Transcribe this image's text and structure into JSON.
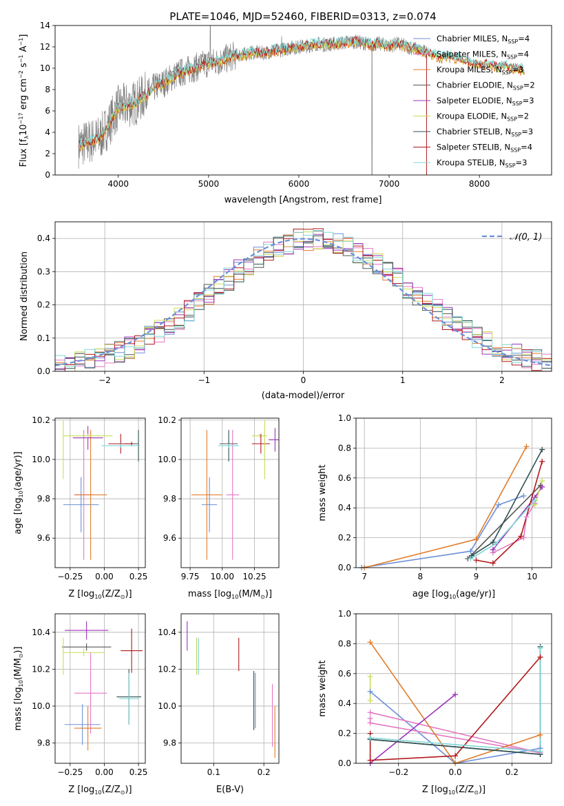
{
  "page": {
    "title": "PLATE=1046, MJD=52460, FIBERID=0313, z=0.074"
  },
  "colors": {
    "chabrier_miles": "#6a8fd8",
    "salpeter_miles": "#e377c2",
    "kroupa_miles": "#e07b2a",
    "chabrier_elodie": "#555555",
    "salpeter_elodie": "#9b30b8",
    "kroupa_elodie": "#c8dd55",
    "chabrier_stelib": "#2f4f4f",
    "salpeter_stelib": "#b0181c",
    "kroupa_stelib": "#7fd6d6",
    "data_spectrum": "#808080",
    "normal_curve": "#6a8fd8"
  },
  "chart_data": [
    {
      "id": "spectrum",
      "type": "line",
      "title": "PLATE=1046, MJD=52460, FIBERID=0313, z=0.074",
      "xlabel": "wavelength [Angstrom, rest frame]",
      "ylabel_parts": [
        "Flux [f",
        "λ",
        "10",
        "−17",
        " erg cm",
        "−2",
        " s",
        "−1",
        " A",
        "−1",
        "]"
      ],
      "xlim": [
        3300,
        8800
      ],
      "ylim": [
        0,
        14
      ],
      "xticks": [
        "4000",
        "5000",
        "6000",
        "7000",
        "8000"
      ],
      "yticks": [
        "0",
        "2",
        "4",
        "6",
        "8",
        "10",
        "12",
        "14"
      ],
      "spectrum_anchor": {
        "x": [
          3560,
          3700,
          3800,
          3900,
          3950,
          4000,
          4100,
          4200,
          4300,
          4400,
          4500,
          4600,
          4700,
          4800,
          4900,
          5000,
          5100,
          5200,
          5300,
          5400,
          5500,
          5600,
          5700,
          5800,
          5900,
          6000,
          6100,
          6200,
          6300,
          6400,
          6500,
          6600,
          6700,
          6800,
          6900,
          7000,
          7100,
          7200,
          7300,
          7400,
          7500,
          7600,
          7700,
          7800,
          7900,
          8000,
          8100,
          8200,
          8300,
          8400,
          8500
        ],
        "y": [
          2.8,
          3.2,
          3.5,
          4.8,
          5.6,
          6.3,
          6.5,
          6.8,
          7.5,
          8.2,
          8.6,
          9.2,
          9.6,
          9.9,
          10.2,
          10.5,
          10.6,
          10.9,
          11.2,
          11.3,
          11.5,
          11.4,
          11.6,
          11.7,
          11.9,
          12.0,
          12.1,
          12.3,
          12.2,
          12.3,
          12.4,
          12.5,
          12.4,
          12.2,
          12.3,
          12.1,
          12.3,
          12.0,
          11.8,
          11.5,
          11.2,
          11.0,
          11.1,
          10.9,
          10.6,
          10.3,
          10.4,
          10.1,
          10.2,
          10.0,
          9.8
        ]
      },
      "series": [
        {
          "name": "Chabrier MILES, N",
          "sub": "SSP",
          "suffix": "=4",
          "color_key": "chabrier_miles"
        },
        {
          "name": "Salpeter MILES, N",
          "sub": "SSP",
          "suffix": "=4",
          "color_key": "salpeter_miles"
        },
        {
          "name": "Kroupa MILES, N",
          "sub": "SSP",
          "suffix": "=3",
          "color_key": "kroupa_miles"
        },
        {
          "name": "Chabrier ELODIE, N",
          "sub": "SSP",
          "suffix": "=2",
          "color_key": "chabrier_elodie"
        },
        {
          "name": "Salpeter ELODIE, N",
          "sub": "SSP",
          "suffix": "=3",
          "color_key": "salpeter_elodie"
        },
        {
          "name": "Kroupa ELODIE, N",
          "sub": "SSP",
          "suffix": "=2",
          "color_key": "kroupa_elodie"
        },
        {
          "name": "Chabrier STELIB, N",
          "sub": "SSP",
          "suffix": "=3",
          "color_key": "chabrier_stelib"
        },
        {
          "name": "Salpeter STELIB, N",
          "sub": "SSP",
          "suffix": "=4",
          "color_key": "salpeter_stelib"
        },
        {
          "name": "Kroupa STELIB, N",
          "sub": "SSP",
          "suffix": "=3",
          "color_key": "kroupa_stelib"
        }
      ],
      "legend": "upper right",
      "grid": false
    },
    {
      "id": "residuals",
      "type": "histogram",
      "xlabel": "(data-model)/error",
      "ylabel": "Normed distribution",
      "xlim": [
        -2.5,
        2.5
      ],
      "ylim": [
        0,
        0.45
      ],
      "xticks": [
        {
          "v": -2,
          "t": "−2"
        },
        {
          "v": -1,
          "t": "−1"
        },
        {
          "v": 0,
          "t": "0"
        },
        {
          "v": 1,
          "t": "1"
        },
        {
          "v": 2,
          "t": "2"
        }
      ],
      "yticks": [
        "0.0",
        "0.1",
        "0.2",
        "0.3",
        "0.4"
      ],
      "bin_width": 0.1,
      "reference_curve": {
        "name": "𝒩(0, 1)",
        "mu": 0,
        "sigma": 1
      },
      "legend": "upper right",
      "grid": true
    },
    {
      "id": "age_vs_Z",
      "type": "scatter_errorbar",
      "xlabel": "Z [log",
      "xlabel_tail": "(Z/Z",
      "xlabel_end": ")]",
      "ylabel": "age  [log",
      "ylabel_tail": "(age/yr)]",
      "xlim": [
        -0.36,
        0.3
      ],
      "ylim": [
        9.45,
        10.21
      ],
      "xticks": [
        {
          "v": -0.25,
          "t": "−0.25"
        },
        {
          "v": 0,
          "t": "0.00"
        },
        {
          "v": 0.25,
          "t": "0.25"
        }
      ],
      "yticks": [
        {
          "v": 9.6,
          "t": "9.6"
        },
        {
          "v": 9.8,
          "t": "9.8"
        },
        {
          "v": 10.0,
          "t": "10.0"
        },
        {
          "v": 10.2,
          "t": "10.2"
        }
      ],
      "points": [
        {
          "c": "chabrier_miles",
          "x": -0.17,
          "xe": 0.13,
          "y": 9.77,
          "ye": 0.14
        },
        {
          "c": "salpeter_miles",
          "x": -0.15,
          "xe": 0.07,
          "y": 9.82,
          "ye": 0.33
        },
        {
          "c": "kroupa_miles",
          "x": -0.1,
          "xe": 0.12,
          "y": 9.82,
          "ye": 0.33
        },
        {
          "c": "chabrier_elodie",
          "x": 0.2,
          "xe": 0.05,
          "y": 10.08,
          "ye": 0.01
        },
        {
          "c": "salpeter_elodie",
          "x": -0.12,
          "xe": 0.11,
          "y": 10.11,
          "ye": 0.06
        },
        {
          "c": "kroupa_elodie",
          "x": -0.12,
          "xe": 0.18,
          "y": 10.12,
          "ye": 0.01
        },
        {
          "c": "chabrier_stelib",
          "x": 0.25,
          "xe": 0.01,
          "y": 10.07,
          "ye": 0.08
        },
        {
          "c": "salpeter_stelib",
          "x": 0.12,
          "xe": 0.09,
          "y": 10.08,
          "ye": 0.05
        },
        {
          "c": "kroupa_stelib",
          "x": 0.12,
          "xe": 0.14,
          "y": 10.07,
          "ye": 0.01
        },
        {
          "c": "kroupa_elodie",
          "x": -0.3,
          "xe": 0.0,
          "y": 10.05,
          "ye": 0.15
        }
      ],
      "grid": true
    },
    {
      "id": "age_vs_mass",
      "type": "scatter_errorbar",
      "xlabel": "mass [log",
      "xlabel_tail": "(M/M",
      "xlabel_end": ")]",
      "xlim": [
        9.68,
        10.44
      ],
      "ylim": [
        9.45,
        10.21
      ],
      "xticks": [
        {
          "v": 9.75,
          "t": "9.75"
        },
        {
          "v": 10.0,
          "t": "10.00"
        },
        {
          "v": 10.25,
          "t": "10.25"
        }
      ],
      "yticks": [
        {
          "v": 9.6,
          "t": "9.6"
        },
        {
          "v": 9.8,
          "t": "9.8"
        },
        {
          "v": 10.0,
          "t": "10.0"
        },
        {
          "v": 10.2,
          "t": "10.2"
        }
      ],
      "points": [
        {
          "c": "chabrier_miles",
          "x": 9.9,
          "xe": 0.06,
          "y": 9.77,
          "ye": 0.14
        },
        {
          "c": "salpeter_miles",
          "x": 10.08,
          "xe": 0.05,
          "y": 9.82,
          "ye": 0.33
        },
        {
          "c": "kroupa_miles",
          "x": 9.88,
          "xe": 0.12,
          "y": 9.82,
          "ye": 0.33
        },
        {
          "c": "chabrier_elodie",
          "x": 10.05,
          "xe": 0.07,
          "y": 10.08,
          "ye": 0.01
        },
        {
          "c": "salpeter_elodie",
          "x": 10.41,
          "xe": 0.05,
          "y": 10.1,
          "ye": 0.06
        },
        {
          "c": "kroupa_elodie",
          "x": 10.29,
          "xe": 0.06,
          "y": 10.12,
          "ye": 0.01
        },
        {
          "c": "chabrier_stelib",
          "x": 10.05,
          "xe": 0.01,
          "y": 10.07,
          "ye": 0.08
        },
        {
          "c": "salpeter_stelib",
          "x": 10.3,
          "xe": 0.07,
          "y": 10.08,
          "ye": 0.05
        },
        {
          "c": "kroupa_stelib",
          "x": 10.05,
          "xe": 0.08,
          "y": 10.07,
          "ye": 0.01
        },
        {
          "c": "kroupa_elodie",
          "x": 10.33,
          "xe": 0.0,
          "y": 10.05,
          "ye": 0.15
        }
      ],
      "grid": true
    },
    {
      "id": "weight_vs_age",
      "type": "line",
      "xlabel": "age  [log",
      "xlabel_tail": "(age/yr)]",
      "ylabel": "mass weight",
      "xlim": [
        6.85,
        10.35
      ],
      "ylim": [
        0,
        1
      ],
      "xticks": [
        {
          "v": 7,
          "t": "7"
        },
        {
          "v": 8,
          "t": "8"
        },
        {
          "v": 9,
          "t": "9"
        },
        {
          "v": 10,
          "t": "10"
        }
      ],
      "yticks": [
        {
          "v": 0,
          "t": "0.0"
        },
        {
          "v": 0.2,
          "t": "0.2"
        },
        {
          "v": 0.4,
          "t": "0.4"
        },
        {
          "v": 0.6,
          "t": "0.6"
        },
        {
          "v": 0.8,
          "t": "0.8"
        },
        {
          "v": 1.0,
          "t": "1.0"
        }
      ],
      "series": [
        {
          "c": "chabrier_miles",
          "x": [
            6.95,
            8.9,
            9.4,
            9.85
          ],
          "y": [
            0.0,
            0.11,
            0.42,
            0.48
          ]
        },
        {
          "c": "salpeter_miles",
          "x": [
            9.3,
            9.85,
            9.9,
            10.05
          ],
          "y": [
            0.1,
            0.2,
            0.34,
            0.43
          ]
        },
        {
          "c": "kroupa_miles",
          "x": [
            7.0,
            9.0,
            9.9
          ],
          "y": [
            0.0,
            0.19,
            0.81
          ]
        },
        {
          "c": "chabrier_elodie",
          "x": [
            8.85,
            10.15
          ],
          "y": [
            0.06,
            0.55
          ]
        },
        {
          "c": "salpeter_elodie",
          "x": [
            9.3,
            10.05,
            10.18
          ],
          "y": [
            0.12,
            0.47,
            0.54
          ]
        },
        {
          "c": "kroupa_elodie",
          "x": [
            10.05,
            10.18
          ],
          "y": [
            0.42,
            0.58
          ]
        },
        {
          "c": "chabrier_stelib",
          "x": [
            8.92,
            9.3,
            10.18
          ],
          "y": [
            0.08,
            0.17,
            0.79
          ]
        },
        {
          "c": "salpeter_stelib",
          "x": [
            9.0,
            9.3,
            9.8,
            10.18
          ],
          "y": [
            0.05,
            0.03,
            0.21,
            0.71
          ]
        },
        {
          "c": "kroupa_stelib",
          "x": [
            8.9,
            9.35,
            10.05
          ],
          "y": [
            0.06,
            0.16,
            0.45
          ]
        }
      ],
      "grid": true
    },
    {
      "id": "mass_vs_Z",
      "type": "scatter_errorbar",
      "xlabel": "Z [log",
      "xlabel_tail": "(Z/Z",
      "xlabel_end": ")]",
      "ylabel": "mass [log",
      "ylabel_tail": "(M/M",
      "ylabel_end": ")]",
      "xlim": [
        -0.36,
        0.3
      ],
      "ylim": [
        9.69,
        10.5
      ],
      "xticks": [
        {
          "v": -0.25,
          "t": "−0.25"
        },
        {
          "v": 0,
          "t": "0.00"
        },
        {
          "v": 0.25,
          "t": "0.25"
        }
      ],
      "yticks": [
        {
          "v": 9.8,
          "t": "9.8"
        },
        {
          "v": 10.0,
          "t": "10.0"
        },
        {
          "v": 10.2,
          "t": "10.2"
        },
        {
          "v": 10.4,
          "t": "10.4"
        }
      ],
      "points": [
        {
          "c": "chabrier_miles",
          "x": -0.16,
          "xe": 0.13,
          "y": 9.9,
          "ye": 0.11
        },
        {
          "c": "salpeter_miles",
          "x": -0.1,
          "xe": 0.12,
          "y": 10.07,
          "ye": 0.22
        },
        {
          "c": "kroupa_miles",
          "x": -0.12,
          "xe": 0.1,
          "y": 9.88,
          "ye": 0.12
        },
        {
          "c": "chabrier_elodie",
          "x": -0.13,
          "xe": 0.18,
          "y": 10.32,
          "ye": 0.02
        },
        {
          "c": "salpeter_elodie",
          "x": -0.13,
          "xe": 0.16,
          "y": 10.41,
          "ye": 0.05
        },
        {
          "c": "kroupa_elodie",
          "x": -0.15,
          "xe": 0.15,
          "y": 10.29,
          "ye": 0.02
        },
        {
          "c": "chabrier_stelib",
          "x": 0.18,
          "xe": 0.09,
          "y": 10.05,
          "ye": 0.15
        },
        {
          "c": "salpeter_stelib",
          "x": 0.2,
          "xe": 0.08,
          "y": 10.3,
          "ye": 0.12
        },
        {
          "c": "kroupa_stelib",
          "x": 0.18,
          "xe": 0.07,
          "y": 10.04,
          "ye": 0.14
        },
        {
          "c": "kroupa_elodie",
          "x": -0.3,
          "xe": 0.0,
          "y": 10.27,
          "ye": 0.1
        }
      ],
      "grid": true
    },
    {
      "id": "mass_vs_ebv",
      "type": "scatter_errorbar",
      "xlabel": "E(B-V)",
      "xlim": [
        0.035,
        0.23
      ],
      "ylim": [
        9.69,
        10.5
      ],
      "xticks": [
        {
          "v": 0.1,
          "t": "0.1"
        },
        {
          "v": 0.2,
          "t": "0.2"
        }
      ],
      "yticks": [
        {
          "v": 9.8,
          "t": "9.8"
        },
        {
          "v": 10.0,
          "t": "10.0"
        },
        {
          "v": 10.2,
          "t": "10.2"
        },
        {
          "v": 10.4,
          "t": "10.4"
        }
      ],
      "points": [
        {
          "c": "chabrier_miles",
          "x": 0.183,
          "xe": 0,
          "y": 10.03,
          "ye": 0.15
        },
        {
          "c": "salpeter_miles",
          "x": 0.217,
          "xe": 0,
          "y": 9.95,
          "ye": 0.17
        },
        {
          "c": "kroupa_miles",
          "x": 0.222,
          "xe": 0,
          "y": 9.86,
          "ye": 0.14
        },
        {
          "c": "chabrier_elodie",
          "x": 0.066,
          "xe": 0,
          "y": 10.27,
          "ye": 0.1
        },
        {
          "c": "salpeter_elodie",
          "x": 0.047,
          "xe": 0,
          "y": 10.38,
          "ye": 0.08
        },
        {
          "c": "kroupa_elodie",
          "x": 0.066,
          "xe": 0,
          "y": 10.27,
          "ye": 0.1
        },
        {
          "c": "chabrier_stelib",
          "x": 0.18,
          "xe": 0,
          "y": 10.03,
          "ye": 0.16
        },
        {
          "c": "salpeter_stelib",
          "x": 0.15,
          "xe": 0,
          "y": 10.28,
          "ye": 0.09
        },
        {
          "c": "kroupa_stelib",
          "x": 0.07,
          "xe": 0,
          "y": 10.27,
          "ye": 0.1
        }
      ],
      "grid": true
    },
    {
      "id": "weight_vs_Z",
      "type": "line",
      "xlabel": "Z [log",
      "xlabel_tail": "(Z/Z",
      "xlabel_end": ")]",
      "ylabel": "mass weight",
      "xlim": [
        -0.35,
        0.34
      ],
      "ylim": [
        0,
        1
      ],
      "xticks": [
        {
          "v": -0.2,
          "t": "−0.2"
        },
        {
          "v": 0,
          "t": "0.0"
        },
        {
          "v": 0.2,
          "t": "0.2"
        }
      ],
      "yticks": [
        {
          "v": 0,
          "t": "0.0"
        },
        {
          "v": 0.2,
          "t": "0.2"
        },
        {
          "v": 0.4,
          "t": "0.4"
        },
        {
          "v": 0.6,
          "t": "0.6"
        },
        {
          "v": 0.8,
          "t": "0.8"
        },
        {
          "v": 1.0,
          "t": "1.0"
        }
      ],
      "series": [
        {
          "c": "chabrier_miles",
          "x": [
            -0.3,
            0.0,
            0.3
          ],
          "y": [
            0.48,
            0.0,
            0.1
          ]
        },
        {
          "c": "salpeter_miles",
          "x": [
            -0.3,
            0.3,
            -0.3,
            -0.3
          ],
          "y": [
            0.34,
            0.07,
            0.27,
            0.3
          ]
        },
        {
          "c": "kroupa_miles",
          "x": [
            -0.3,
            0.0,
            0.3
          ],
          "y": [
            0.81,
            0.0,
            0.19
          ]
        },
        {
          "c": "chabrier_elodie",
          "x": [
            -0.3,
            0.3
          ],
          "y": [
            0.16,
            0.06
          ]
        },
        {
          "c": "salpeter_elodie",
          "x": [
            -0.3,
            0.0
          ],
          "y": [
            0.0,
            0.46
          ]
        },
        {
          "c": "kroupa_elodie",
          "x": [
            -0.3,
            -0.3
          ],
          "y": [
            0.42,
            0.58
          ]
        },
        {
          "c": "chabrier_stelib",
          "x": [
            -0.3,
            0.3,
            0.3
          ],
          "y": [
            0.16,
            0.06,
            0.78
          ]
        },
        {
          "c": "salpeter_stelib",
          "x": [
            -0.3,
            -0.3,
            0.0,
            0.3
          ],
          "y": [
            0.2,
            0.02,
            0.05,
            0.71
          ]
        },
        {
          "c": "kroupa_stelib",
          "x": [
            -0.3,
            0.3,
            0.3
          ],
          "y": [
            0.17,
            0.08,
            0.77
          ]
        }
      ],
      "grid": true
    }
  ]
}
